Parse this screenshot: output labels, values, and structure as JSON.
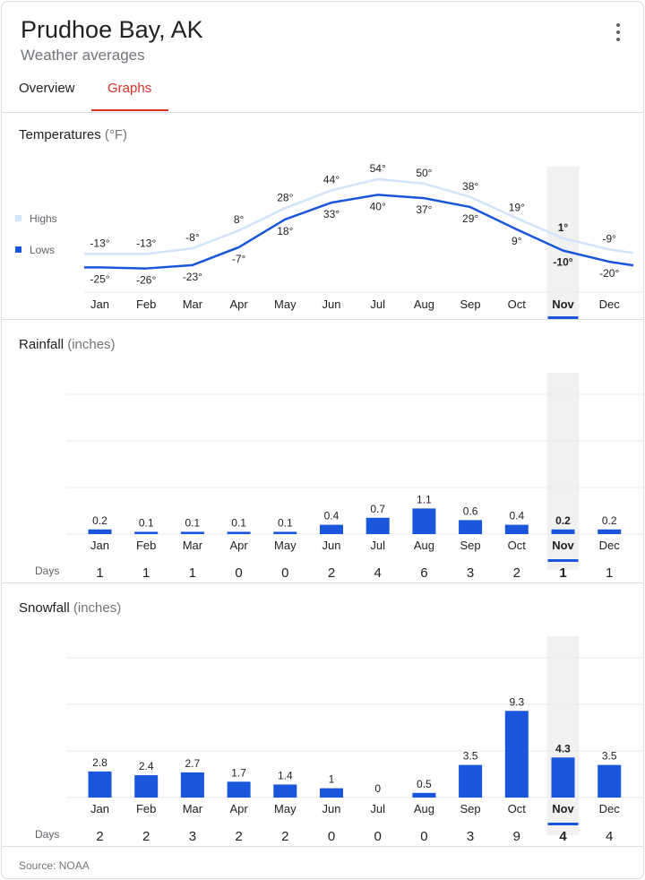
{
  "header": {
    "title": "Prudhoe Bay, AK",
    "subtitle": "Weather averages"
  },
  "tabs": [
    {
      "label": "Overview",
      "selected": false
    },
    {
      "label": "Graphs",
      "selected": true
    }
  ],
  "colors": {
    "accent_red": "#d93025",
    "bar_blue": "#1a56db",
    "highs_line": "#d2e3fc",
    "lows_line": "#1a56db",
    "highlight_band": "#f1f1f1",
    "grid": "#e8eaed"
  },
  "months": [
    "Jan",
    "Feb",
    "Mar",
    "Apr",
    "May",
    "Jun",
    "Jul",
    "Aug",
    "Sep",
    "Oct",
    "Nov",
    "Dec"
  ],
  "selected_month": "Nov",
  "source": "Source: NOAA",
  "chart_data": [
    {
      "type": "line",
      "title": "Temperatures",
      "unit_label": "(°F)",
      "categories": [
        "Jan",
        "Feb",
        "Mar",
        "Apr",
        "May",
        "Jun",
        "Jul",
        "Aug",
        "Sep",
        "Oct",
        "Nov",
        "Dec"
      ],
      "series": [
        {
          "name": "Highs",
          "values": [
            -13,
            -13,
            -8,
            8,
            28,
            44,
            54,
            50,
            38,
            19,
            1,
            -9
          ],
          "labels": [
            "-13°",
            "-13°",
            "-8°",
            "8°",
            "28°",
            "44°",
            "54°",
            "50°",
            "38°",
            "19°",
            "1°",
            "-9°"
          ]
        },
        {
          "name": "Lows",
          "values": [
            -25,
            -26,
            -23,
            -7,
            18,
            33,
            40,
            37,
            29,
            9,
            -10,
            -20
          ],
          "labels": [
            "-25°",
            "-26°",
            "-23°",
            "-7°",
            "18°",
            "33°",
            "40°",
            "37°",
            "29°",
            "9°",
            "-10°",
            "-20°"
          ]
        }
      ],
      "ylim": [
        -40,
        70
      ],
      "legend": [
        "Highs",
        "Lows"
      ],
      "legend_position": "left"
    },
    {
      "type": "bar",
      "title": "Rainfall",
      "unit_label": "(inches)",
      "categories": [
        "Jan",
        "Feb",
        "Mar",
        "Apr",
        "May",
        "Jun",
        "Jul",
        "Aug",
        "Sep",
        "Oct",
        "Nov",
        "Dec"
      ],
      "values": [
        0.2,
        0.1,
        0.1,
        0.1,
        0.1,
        0.4,
        0.7,
        1.1,
        0.6,
        0.4,
        0.2,
        0.2
      ],
      "labels": [
        "0.2",
        "0.1",
        "0.1",
        "0.1",
        "0.1",
        "0.4",
        "0.7",
        "1.1",
        "0.6",
        "0.4",
        "0.2",
        "0.2"
      ],
      "days_label": "Days",
      "days": [
        "1",
        "1",
        "1",
        "0",
        "0",
        "2",
        "4",
        "6",
        "3",
        "2",
        "1",
        "1"
      ],
      "ylim": [
        0,
        6
      ]
    },
    {
      "type": "bar",
      "title": "Snowfall",
      "unit_label": "(inches)",
      "categories": [
        "Jan",
        "Feb",
        "Mar",
        "Apr",
        "May",
        "Jun",
        "Jul",
        "Aug",
        "Sep",
        "Oct",
        "Nov",
        "Dec"
      ],
      "values": [
        2.8,
        2.4,
        2.7,
        1.7,
        1.4,
        1,
        0,
        0.5,
        3.5,
        9.3,
        4.3,
        3.5
      ],
      "labels": [
        "2.8",
        "2.4",
        "2.7",
        "1.7",
        "1.4",
        "1",
        "0",
        "0.5",
        "3.5",
        "9.3",
        "4.3",
        "3.5"
      ],
      "days_label": "Days",
      "days": [
        "2",
        "2",
        "3",
        "2",
        "2",
        "0",
        "0",
        "0",
        "3",
        "9",
        "4",
        "4"
      ],
      "ylim": [
        0,
        15
      ]
    }
  ]
}
